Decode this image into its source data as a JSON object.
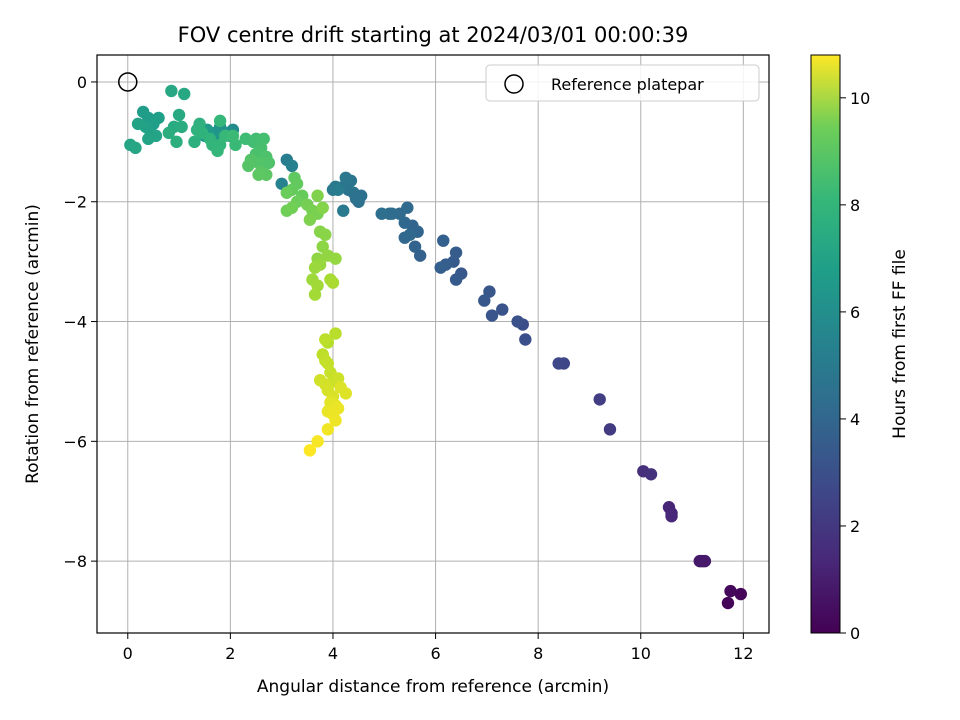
{
  "chart_data": {
    "type": "scatter",
    "title": "FOV centre drift starting at 2024/03/01 00:00:39",
    "xlabel": "Angular distance from reference (arcmin)",
    "ylabel": "Rotation from reference (arcmin)",
    "xlim": [
      -0.6,
      12.5
    ],
    "ylim": [
      -9.2,
      0.45
    ],
    "xticks": [
      0,
      2,
      4,
      6,
      8,
      10,
      12
    ],
    "yticks": [
      0,
      -2,
      -4,
      -6,
      -8
    ],
    "grid": true,
    "legend": {
      "position": "top-right",
      "entries": [
        "Reference platepar"
      ]
    },
    "colorbar": {
      "label": "Hours from first FF file",
      "range": [
        0,
        10.8
      ],
      "ticks": [
        0,
        2,
        4,
        6,
        8,
        10
      ],
      "colormap": "viridis"
    },
    "reference_point": {
      "label": "Reference platepar",
      "x": 0,
      "y": 0
    },
    "series": [
      {
        "points": [
          {
            "x": 11.7,
            "y": -8.7,
            "h": 0.1
          },
          {
            "x": 11.95,
            "y": -8.55,
            "h": 0.15
          },
          {
            "x": 11.75,
            "y": -8.5,
            "h": 0.25
          },
          {
            "x": 11.2,
            "y": -8.0,
            "h": 0.6
          },
          {
            "x": 11.15,
            "y": -8.0,
            "h": 0.7
          },
          {
            "x": 11.25,
            "y": -8.0,
            "h": 0.75
          },
          {
            "x": 10.6,
            "y": -7.2,
            "h": 1.1
          },
          {
            "x": 10.55,
            "y": -7.1,
            "h": 1.15
          },
          {
            "x": 10.6,
            "y": -7.25,
            "h": 1.2
          },
          {
            "x": 10.05,
            "y": -6.5,
            "h": 1.5
          },
          {
            "x": 10.2,
            "y": -6.55,
            "h": 1.55
          },
          {
            "x": 9.4,
            "y": -5.8,
            "h": 1.9
          },
          {
            "x": 9.2,
            "y": -5.3,
            "h": 2.0
          },
          {
            "x": 8.5,
            "y": -4.7,
            "h": 2.3
          },
          {
            "x": 8.4,
            "y": -4.7,
            "h": 2.35
          },
          {
            "x": 7.7,
            "y": -4.05,
            "h": 2.6
          },
          {
            "x": 7.75,
            "y": -4.3,
            "h": 2.65
          },
          {
            "x": 7.6,
            "y": -4.0,
            "h": 2.7
          },
          {
            "x": 7.3,
            "y": -3.8,
            "h": 2.8
          },
          {
            "x": 7.1,
            "y": -3.9,
            "h": 2.85
          },
          {
            "x": 7.05,
            "y": -3.5,
            "h": 2.9
          },
          {
            "x": 6.95,
            "y": -3.65,
            "h": 2.95
          },
          {
            "x": 6.5,
            "y": -3.2,
            "h": 3.0
          },
          {
            "x": 6.4,
            "y": -3.3,
            "h": 3.05
          },
          {
            "x": 6.35,
            "y": -3.0,
            "h": 3.1
          },
          {
            "x": 6.4,
            "y": -2.85,
            "h": 3.15
          },
          {
            "x": 6.2,
            "y": -3.05,
            "h": 3.2
          },
          {
            "x": 6.1,
            "y": -3.1,
            "h": 3.25
          },
          {
            "x": 6.15,
            "y": -2.65,
            "h": 3.3
          },
          {
            "x": 5.7,
            "y": -2.9,
            "h": 3.35
          },
          {
            "x": 5.6,
            "y": -2.75,
            "h": 3.4
          },
          {
            "x": 5.55,
            "y": -2.4,
            "h": 3.45
          },
          {
            "x": 5.65,
            "y": -2.5,
            "h": 3.5
          },
          {
            "x": 5.4,
            "y": -2.6,
            "h": 3.55
          },
          {
            "x": 5.4,
            "y": -2.35,
            "h": 3.6
          },
          {
            "x": 5.5,
            "y": -2.55,
            "h": 3.65
          },
          {
            "x": 5.45,
            "y": -2.1,
            "h": 3.7
          },
          {
            "x": 5.3,
            "y": -2.2,
            "h": 3.75
          },
          {
            "x": 5.15,
            "y": -2.2,
            "h": 3.8
          },
          {
            "x": 5.1,
            "y": -2.2,
            "h": 3.85
          },
          {
            "x": 4.95,
            "y": -2.2,
            "h": 3.9
          },
          {
            "x": 4.55,
            "y": -1.9,
            "h": 3.95
          },
          {
            "x": 4.5,
            "y": -2.0,
            "h": 4.0
          },
          {
            "x": 4.45,
            "y": -1.95,
            "h": 4.05
          },
          {
            "x": 4.4,
            "y": -1.85,
            "h": 4.1
          },
          {
            "x": 4.3,
            "y": -1.8,
            "h": 4.15
          },
          {
            "x": 4.2,
            "y": -1.75,
            "h": 4.2
          },
          {
            "x": 4.35,
            "y": -1.65,
            "h": 4.25
          },
          {
            "x": 4.25,
            "y": -1.6,
            "h": 4.3
          },
          {
            "x": 4.05,
            "y": -1.75,
            "h": 4.35
          },
          {
            "x": 4.0,
            "y": -1.8,
            "h": 4.4
          },
          {
            "x": 4.2,
            "y": -2.15,
            "h": 4.45
          },
          {
            "x": 4.1,
            "y": -1.8,
            "h": 4.5
          },
          {
            "x": 3.1,
            "y": -1.3,
            "h": 4.6
          },
          {
            "x": 3.2,
            "y": -1.4,
            "h": 4.7
          },
          {
            "x": 3.0,
            "y": -1.7,
            "h": 4.8
          },
          {
            "x": 2.05,
            "y": -0.8,
            "h": 5.2
          },
          {
            "x": 1.95,
            "y": -0.85,
            "h": 5.3
          },
          {
            "x": 2.0,
            "y": -0.9,
            "h": 5.4
          },
          {
            "x": 1.8,
            "y": -0.75,
            "h": 5.5
          },
          {
            "x": 1.7,
            "y": -0.85,
            "h": 5.6
          },
          {
            "x": 1.75,
            "y": -0.95,
            "h": 5.7
          },
          {
            "x": 1.6,
            "y": -0.9,
            "h": 5.75
          },
          {
            "x": 1.5,
            "y": -0.9,
            "h": 5.8
          },
          {
            "x": 1.55,
            "y": -0.8,
            "h": 5.85
          },
          {
            "x": 0.4,
            "y": -0.6,
            "h": 5.9
          },
          {
            "x": 0.3,
            "y": -0.5,
            "h": 5.95
          },
          {
            "x": 0.5,
            "y": -0.7,
            "h": 6.0
          },
          {
            "x": 0.6,
            "y": -0.6,
            "h": 6.05
          },
          {
            "x": 0.45,
            "y": -0.85,
            "h": 6.1
          },
          {
            "x": 0.35,
            "y": -0.75,
            "h": 6.15
          },
          {
            "x": 0.2,
            "y": -0.7,
            "h": 6.2
          },
          {
            "x": 0.55,
            "y": -0.9,
            "h": 6.25
          },
          {
            "x": 0.4,
            "y": -0.95,
            "h": 6.3
          },
          {
            "x": 0.05,
            "y": -1.05,
            "h": 6.35
          },
          {
            "x": 0.15,
            "y": -1.1,
            "h": 6.4
          },
          {
            "x": 0.85,
            "y": -0.15,
            "h": 6.45
          },
          {
            "x": 1.1,
            "y": -0.2,
            "h": 6.5
          },
          {
            "x": 1.0,
            "y": -0.55,
            "h": 6.55
          },
          {
            "x": 0.9,
            "y": -0.75,
            "h": 6.6
          },
          {
            "x": 1.05,
            "y": -0.75,
            "h": 6.65
          },
          {
            "x": 0.8,
            "y": -0.85,
            "h": 6.7
          },
          {
            "x": 0.95,
            "y": -1.0,
            "h": 6.75
          },
          {
            "x": 1.3,
            "y": -1.0,
            "h": 6.8
          },
          {
            "x": 1.4,
            "y": -0.7,
            "h": 6.85
          },
          {
            "x": 1.35,
            "y": -0.8,
            "h": 6.9
          },
          {
            "x": 1.45,
            "y": -0.85,
            "h": 6.95
          },
          {
            "x": 1.6,
            "y": -0.95,
            "h": 7.0
          },
          {
            "x": 1.65,
            "y": -1.05,
            "h": 7.05
          },
          {
            "x": 1.8,
            "y": -1.05,
            "h": 7.1
          },
          {
            "x": 1.75,
            "y": -1.15,
            "h": 7.15
          },
          {
            "x": 1.8,
            "y": -0.65,
            "h": 7.2
          },
          {
            "x": 1.9,
            "y": -0.9,
            "h": 7.25
          },
          {
            "x": 2.1,
            "y": -1.05,
            "h": 7.3
          },
          {
            "x": 2.05,
            "y": -0.9,
            "h": 7.35
          },
          {
            "x": 2.3,
            "y": -0.95,
            "h": 7.4
          },
          {
            "x": 2.45,
            "y": -1.0,
            "h": 7.45
          },
          {
            "x": 2.5,
            "y": -0.95,
            "h": 7.5
          },
          {
            "x": 2.65,
            "y": -0.95,
            "h": 7.55
          },
          {
            "x": 2.6,
            "y": -1.1,
            "h": 7.6
          },
          {
            "x": 2.5,
            "y": -1.2,
            "h": 7.65
          },
          {
            "x": 2.7,
            "y": -1.25,
            "h": 7.7
          },
          {
            "x": 2.75,
            "y": -1.35,
            "h": 7.75
          },
          {
            "x": 2.55,
            "y": -1.35,
            "h": 7.8
          },
          {
            "x": 2.4,
            "y": -1.3,
            "h": 7.85
          },
          {
            "x": 2.35,
            "y": -1.4,
            "h": 7.9
          },
          {
            "x": 2.6,
            "y": -1.5,
            "h": 7.95
          },
          {
            "x": 2.7,
            "y": -1.55,
            "h": 8.0
          },
          {
            "x": 2.55,
            "y": -1.55,
            "h": 8.05
          },
          {
            "x": 3.25,
            "y": -1.6,
            "h": 8.1
          },
          {
            "x": 3.3,
            "y": -1.7,
            "h": 8.15
          },
          {
            "x": 3.2,
            "y": -1.8,
            "h": 8.2
          },
          {
            "x": 3.4,
            "y": -1.9,
            "h": 8.25
          },
          {
            "x": 3.1,
            "y": -1.85,
            "h": 8.3
          },
          {
            "x": 3.3,
            "y": -2.0,
            "h": 8.35
          },
          {
            "x": 3.1,
            "y": -2.15,
            "h": 8.4
          },
          {
            "x": 3.2,
            "y": -2.1,
            "h": 8.45
          },
          {
            "x": 3.5,
            "y": -2.05,
            "h": 8.5
          },
          {
            "x": 3.6,
            "y": -2.15,
            "h": 8.55
          },
          {
            "x": 3.7,
            "y": -2.2,
            "h": 8.6
          },
          {
            "x": 3.55,
            "y": -2.3,
            "h": 8.65
          },
          {
            "x": 3.7,
            "y": -1.9,
            "h": 8.7
          },
          {
            "x": 3.8,
            "y": -2.1,
            "h": 8.75
          },
          {
            "x": 3.75,
            "y": -2.5,
            "h": 8.8
          },
          {
            "x": 3.85,
            "y": -2.55,
            "h": 8.85
          },
          {
            "x": 3.8,
            "y": -2.75,
            "h": 8.9
          },
          {
            "x": 3.7,
            "y": -2.95,
            "h": 8.95
          },
          {
            "x": 3.9,
            "y": -2.9,
            "h": 9.0
          },
          {
            "x": 4.05,
            "y": -2.95,
            "h": 9.05
          },
          {
            "x": 3.75,
            "y": -3.05,
            "h": 9.1
          },
          {
            "x": 3.65,
            "y": -3.1,
            "h": 9.15
          },
          {
            "x": 3.6,
            "y": -3.3,
            "h": 9.2
          },
          {
            "x": 3.7,
            "y": -3.4,
            "h": 9.25
          },
          {
            "x": 3.65,
            "y": -3.55,
            "h": 9.3
          },
          {
            "x": 3.95,
            "y": -3.3,
            "h": 9.35
          },
          {
            "x": 4.0,
            "y": -3.35,
            "h": 9.4
          },
          {
            "x": 3.9,
            "y": -4.35,
            "h": 9.6
          },
          {
            "x": 4.05,
            "y": -4.2,
            "h": 9.65
          },
          {
            "x": 3.85,
            "y": -4.3,
            "h": 9.7
          },
          {
            "x": 3.8,
            "y": -4.55,
            "h": 9.75
          },
          {
            "x": 3.85,
            "y": -4.65,
            "h": 9.8
          },
          {
            "x": 3.9,
            "y": -4.7,
            "h": 9.85
          },
          {
            "x": 3.95,
            "y": -4.85,
            "h": 9.9
          },
          {
            "x": 4.0,
            "y": -5.0,
            "h": 9.95
          },
          {
            "x": 4.1,
            "y": -4.95,
            "h": 10.0
          },
          {
            "x": 3.75,
            "y": -4.98,
            "h": 10.05
          },
          {
            "x": 3.85,
            "y": -5.05,
            "h": 10.1
          },
          {
            "x": 3.9,
            "y": -5.15,
            "h": 10.15
          },
          {
            "x": 4.0,
            "y": -5.25,
            "h": 10.2
          },
          {
            "x": 4.15,
            "y": -5.1,
            "h": 10.25
          },
          {
            "x": 4.25,
            "y": -5.2,
            "h": 10.3
          },
          {
            "x": 3.95,
            "y": -5.35,
            "h": 10.35
          },
          {
            "x": 4.05,
            "y": -5.4,
            "h": 10.4
          },
          {
            "x": 3.9,
            "y": -5.5,
            "h": 10.45
          },
          {
            "x": 4.1,
            "y": -5.45,
            "h": 10.5
          },
          {
            "x": 4.0,
            "y": -5.55,
            "h": 10.52
          },
          {
            "x": 4.05,
            "y": -5.65,
            "h": 10.55
          },
          {
            "x": 3.9,
            "y": -5.8,
            "h": 10.6
          },
          {
            "x": 3.7,
            "y": -6.0,
            "h": 10.7
          },
          {
            "x": 3.55,
            "y": -6.15,
            "h": 10.8
          }
        ]
      }
    ]
  }
}
